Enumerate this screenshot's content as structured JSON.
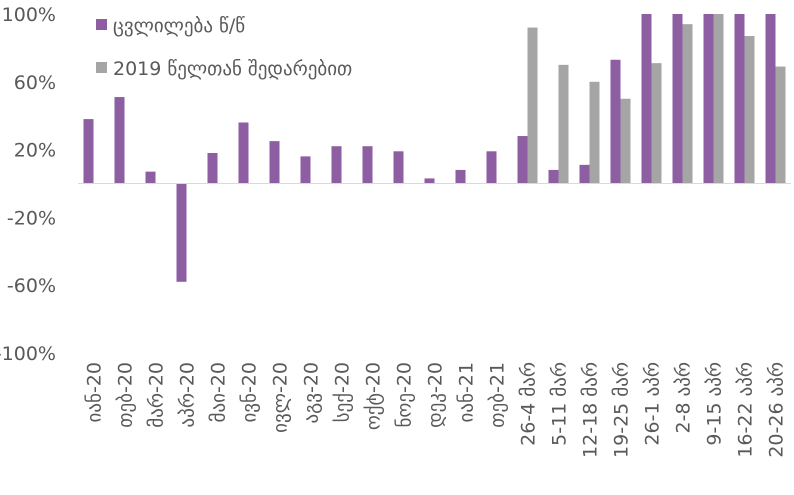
{
  "chart_data": {
    "type": "bar",
    "categories": [
      "იან-20",
      "თებ-20",
      "მარ-20",
      "აპრ-20",
      "მაი-20",
      "ივნ-20",
      "ივლ-20",
      "აგვ-20",
      "სექ-20",
      "ოქტ-20",
      "ნოე-20",
      "დეკ-20",
      "იან-21",
      "თებ-21",
      "26-4 მარ",
      "5-11 მარ",
      "12-18 მარ",
      "19-25 მარ",
      "26-1 აპრ",
      "2-8 აპრ",
      "9-15 აპრ",
      "16-22 აპრ",
      "20-26 აპრ"
    ],
    "series": [
      {
        "name": "ცვლილება წ/წ",
        "color": "#8e5ea2",
        "values": [
          38,
          51,
          7,
          -58,
          18,
          36,
          25,
          16,
          22,
          22,
          19,
          3,
          8,
          19,
          28,
          8,
          11,
          73,
          110,
          110,
          110,
          110,
          110
        ]
      },
      {
        "name": "2019 წელთან შედარებით",
        "color": "#a5a5a5",
        "values": [
          null,
          null,
          null,
          null,
          null,
          null,
          null,
          null,
          null,
          null,
          null,
          null,
          null,
          null,
          92,
          70,
          60,
          50,
          71,
          94,
          110,
          87,
          69
        ]
      }
    ],
    "ylim": [
      -100,
      100
    ],
    "yticks": [
      {
        "value": -100,
        "label": "-100%"
      },
      {
        "value": -60,
        "label": "-60%"
      },
      {
        "value": -20,
        "label": "-20%"
      },
      {
        "value": 20,
        "label": "20%"
      },
      {
        "value": 60,
        "label": "60%"
      },
      {
        "value": 100,
        "label": "100%"
      }
    ],
    "legend": "top-left"
  }
}
